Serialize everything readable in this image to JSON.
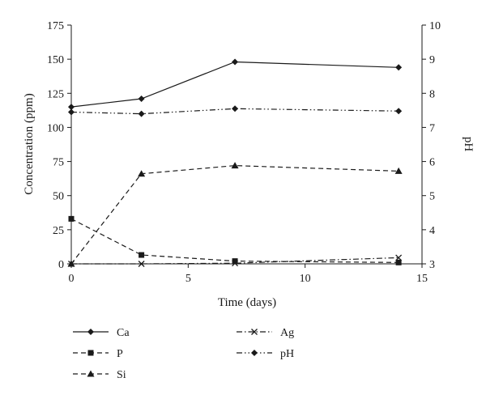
{
  "chart_data": {
    "type": "line",
    "title": "",
    "xlabel": "Time (days)",
    "ylabel_left": "Concentration (ppm)",
    "ylabel_right": "pH",
    "xlim": [
      0,
      15
    ],
    "ylim_left": [
      0,
      175
    ],
    "ylim_right": [
      3,
      10
    ],
    "xticks": [
      0,
      5,
      10,
      15
    ],
    "yticks_left": [
      0,
      25,
      50,
      75,
      100,
      125,
      150,
      175
    ],
    "yticks_right": [
      3,
      4,
      5,
      6,
      7,
      8,
      9,
      10
    ],
    "grid": false,
    "legend_position": "bottom",
    "x": [
      0,
      3,
      7,
      14
    ],
    "series": [
      {
        "name": "Ca",
        "axis": "left",
        "values": [
          115,
          121,
          148,
          144
        ],
        "marker": "diamond",
        "dash": "solid"
      },
      {
        "name": "P",
        "axis": "left",
        "values": [
          33,
          6.5,
          2,
          1
        ],
        "marker": "square",
        "dash": "dashed"
      },
      {
        "name": "Si",
        "axis": "left",
        "values": [
          0,
          66,
          72,
          68
        ],
        "marker": "triangle",
        "dash": "dashed"
      },
      {
        "name": "Ag",
        "axis": "left",
        "values": [
          0,
          0,
          0.5,
          4.5
        ],
        "marker": "x",
        "dash": "dashdot"
      },
      {
        "name": "pH",
        "axis": "right",
        "values": [
          7.45,
          7.4,
          7.55,
          7.48
        ],
        "marker": "diamond",
        "dash": "dashdotdot"
      }
    ]
  }
}
